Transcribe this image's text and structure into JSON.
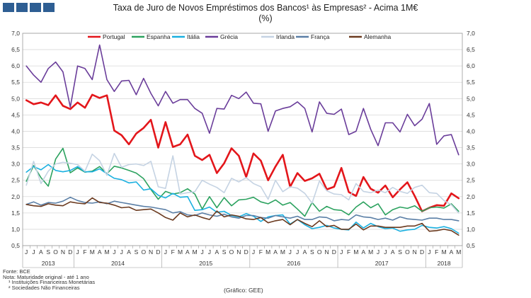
{
  "header": {
    "title": "Taxa de Juro de Novos Empréstimos dos Bancos¹ às Empresas² - Acima 1M€",
    "subtitle": "(%)"
  },
  "footer": {
    "source": "Fonte: BCE",
    "note": "Nota: Maturidade original - até 1 ano",
    "note1": "¹ Instituições Financeiras Monetárias",
    "note2": "² Sociedades Não Financeiras",
    "credit": "(Gráfico: GEE)"
  },
  "chart_data": {
    "type": "line",
    "title": "Taxa de Juro de Novos Empréstimos dos Bancos¹ às Empresas² - Acima 1M€",
    "subtitle": "(%)",
    "ylim": [
      0.5,
      7.0
    ],
    "y_ticks": [
      "7,0",
      "6,5",
      "6,0",
      "5,5",
      "5,0",
      "4,5",
      "4,0",
      "3,5",
      "3,0",
      "2,5",
      "2,0",
      "1,5",
      "1,0",
      "0,5"
    ],
    "month_labels": [
      "J",
      "J",
      "A",
      "S",
      "O",
      "N",
      "D",
      "J",
      "F",
      "M",
      "A",
      "M",
      "J",
      "J",
      "A",
      "S",
      "O",
      "N",
      "D",
      "J",
      "F",
      "M",
      "A",
      "M",
      "J",
      "J",
      "A",
      "S",
      "O",
      "N",
      "D",
      "J",
      "F",
      "M",
      "A",
      "M",
      "J",
      "J",
      "A",
      "S",
      "O",
      "N",
      "D",
      "J",
      "F",
      "M",
      "A",
      "M",
      "J",
      "J",
      "A",
      "S",
      "O",
      "N",
      "D",
      "J",
      "F",
      "M",
      "A",
      "M"
    ],
    "years": [
      {
        "label": "2013",
        "start": 0,
        "end": 7
      },
      {
        "label": "2014",
        "start": 7,
        "end": 19
      },
      {
        "label": "2015",
        "start": 19,
        "end": 31
      },
      {
        "label": "2016",
        "start": 31,
        "end": 43
      },
      {
        "label": "2017",
        "start": 43,
        "end": 55
      },
      {
        "label": "2018",
        "start": 55,
        "end": 60
      }
    ],
    "grid": true,
    "legend_position": "top",
    "series": [
      {
        "name": "Portugal",
        "color": "#e3161b",
        "values": [
          4.95,
          4.83,
          4.88,
          4.8,
          5.1,
          4.78,
          4.68,
          4.88,
          4.72,
          5.12,
          5.02,
          5.1,
          4.02,
          3.88,
          3.6,
          3.93,
          4.1,
          4.35,
          3.5,
          4.28,
          3.52,
          3.6,
          3.9,
          3.25,
          3.12,
          3.28,
          2.72,
          3.02,
          3.48,
          3.25,
          2.6,
          3.32,
          3.1,
          2.5,
          2.92,
          3.28,
          2.3,
          2.72,
          2.48,
          2.56,
          2.7,
          2.22,
          2.3,
          2.88,
          2.14,
          2.02,
          2.6,
          2.24,
          2.12,
          2.34,
          1.98,
          2.22,
          2.44,
          2.02,
          1.55,
          1.66,
          1.74,
          1.72,
          2.1,
          1.95
        ]
      },
      {
        "name": "Espanha",
        "color": "#2ca25f",
        "values": [
          2.47,
          2.95,
          2.58,
          2.32,
          3.15,
          3.48,
          2.73,
          2.88,
          2.75,
          2.78,
          2.92,
          2.7,
          2.93,
          2.88,
          2.8,
          2.72,
          2.55,
          2.22,
          1.92,
          2.16,
          2.08,
          2.12,
          2.24,
          2.08,
          1.62,
          2.0,
          1.66,
          1.97,
          1.72,
          1.9,
          1.92,
          1.98,
          1.84,
          1.78,
          1.9,
          1.74,
          1.82,
          1.62,
          1.4,
          1.82,
          1.55,
          1.7,
          1.6,
          1.58,
          1.44,
          1.68,
          1.84,
          1.66,
          1.78,
          1.44,
          1.6,
          1.68,
          1.64,
          1.72,
          1.55,
          1.66,
          1.68,
          1.65,
          1.78,
          1.55
        ]
      },
      {
        "name": "Itália",
        "color": "#1ab0e0",
        "values": [
          2.75,
          2.92,
          2.82,
          2.98,
          2.8,
          2.76,
          2.8,
          2.92,
          2.76,
          2.76,
          2.85,
          2.7,
          2.56,
          2.52,
          2.42,
          2.45,
          2.2,
          2.24,
          2.04,
          1.96,
          2.1,
          1.98,
          2.0,
          1.58,
          1.6,
          1.68,
          1.52,
          1.55,
          1.42,
          1.38,
          1.48,
          1.4,
          1.24,
          1.38,
          1.42,
          1.44,
          1.16,
          1.3,
          1.14,
          1.02,
          1.06,
          1.12,
          1.04,
          1.0,
          0.98,
          1.22,
          1.04,
          1.18,
          1.08,
          1.02,
          1.04,
          0.94,
          0.98,
          1.0,
          1.12,
          1.06,
          1.04,
          1.08,
          1.02,
          0.88
        ]
      },
      {
        "name": "Grécia",
        "color": "#6a3d9a",
        "values": [
          6.0,
          5.72,
          5.5,
          5.92,
          6.12,
          5.82,
          4.74,
          6.0,
          5.92,
          5.58,
          6.64,
          5.58,
          5.22,
          5.54,
          5.56,
          5.12,
          5.62,
          5.16,
          4.78,
          5.22,
          4.86,
          4.97,
          4.97,
          4.7,
          4.55,
          3.94,
          4.7,
          4.68,
          5.1,
          5.0,
          5.2,
          4.86,
          4.84,
          4.0,
          4.62,
          4.7,
          4.75,
          4.9,
          4.7,
          3.98,
          4.9,
          4.55,
          4.52,
          4.68,
          3.9,
          4.0,
          4.7,
          4.06,
          3.56,
          4.26,
          4.26,
          3.98,
          4.52,
          4.17,
          4.37,
          4.85,
          3.6,
          3.86,
          3.9,
          3.28
        ]
      },
      {
        "name": "Irlanda",
        "color": "#c5d3e3",
        "values": [
          2.35,
          3.08,
          2.4,
          2.78,
          3.0,
          3.05,
          3.02,
          2.98,
          2.78,
          3.3,
          3.1,
          2.65,
          3.32,
          2.9,
          2.98,
          3.0,
          2.95,
          3.08,
          2.3,
          2.25,
          3.25,
          2.08,
          2.12,
          2.15,
          2.5,
          2.38,
          2.28,
          2.12,
          2.56,
          2.45,
          2.58,
          2.4,
          2.3,
          1.92,
          2.5,
          2.15,
          2.3,
          2.26,
          2.1,
          1.8,
          2.48,
          2.18,
          2.08,
          2.06,
          1.9,
          2.4,
          2.16,
          2.12,
          2.2,
          2.12,
          2.28,
          2.16,
          2.1,
          2.28,
          2.35,
          2.12,
          2.1,
          1.88,
          1.75,
          1.5
        ]
      },
      {
        "name": "França",
        "color": "#5b7fa6",
        "values": [
          1.76,
          1.84,
          1.74,
          1.82,
          1.8,
          1.86,
          1.98,
          1.88,
          1.82,
          1.8,
          1.84,
          1.78,
          1.86,
          1.82,
          1.78,
          1.74,
          1.7,
          1.68,
          1.64,
          1.6,
          1.5,
          1.54,
          1.44,
          1.42,
          1.5,
          1.44,
          1.4,
          1.46,
          1.38,
          1.34,
          1.42,
          1.42,
          1.36,
          1.34,
          1.42,
          1.38,
          1.34,
          1.4,
          1.3,
          1.3,
          1.38,
          1.36,
          1.26,
          1.3,
          1.28,
          1.44,
          1.38,
          1.36,
          1.3,
          1.34,
          1.28,
          1.38,
          1.32,
          1.3,
          1.28,
          1.34,
          1.34,
          1.3,
          1.3,
          1.26
        ]
      },
      {
        "name": "Alemanha",
        "color": "#6b3a1f",
        "values": [
          1.76,
          1.72,
          1.7,
          1.78,
          1.74,
          1.72,
          1.84,
          1.8,
          1.78,
          1.96,
          1.82,
          1.8,
          1.74,
          1.66,
          1.68,
          1.58,
          1.6,
          1.62,
          1.5,
          1.36,
          1.28,
          1.5,
          1.38,
          1.44,
          1.36,
          1.3,
          1.56,
          1.38,
          1.44,
          1.4,
          1.32,
          1.3,
          1.36,
          1.2,
          1.26,
          1.3,
          1.14,
          1.3,
          1.18,
          1.08,
          1.26,
          1.08,
          1.12,
          1.0,
          1.0,
          1.16,
          0.98,
          1.1,
          1.1,
          1.06,
          1.06,
          1.06,
          1.1,
          1.1,
          1.18,
          0.94,
          0.96,
          1.0,
          0.96,
          0.82
        ]
      }
    ]
  }
}
